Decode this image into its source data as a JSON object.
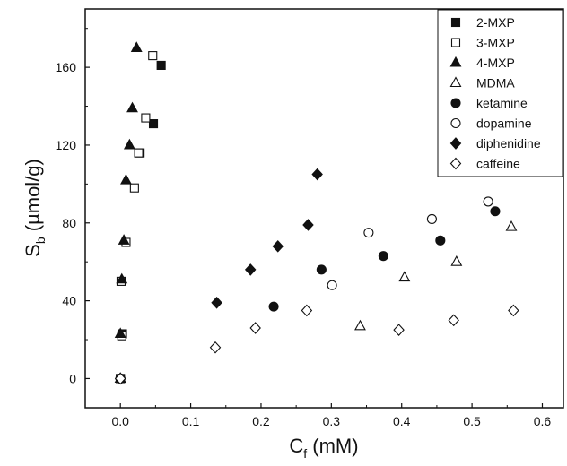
{
  "chart_data": {
    "type": "scatter",
    "title": "",
    "xlabel": {
      "main": "C",
      "sub": "f",
      "rest": " (mM)"
    },
    "ylabel": {
      "main": "S",
      "sub": "b",
      "rest": " (µmol/g)"
    },
    "xlim": [
      -0.05,
      0.63
    ],
    "ylim": [
      -15,
      190
    ],
    "xticks": [
      0.0,
      0.1,
      0.2,
      0.3,
      0.4,
      0.5,
      0.6
    ],
    "xtick_labels": [
      "0.0",
      "0.1",
      "0.2",
      "0.3",
      "0.4",
      "0.5",
      "0.6"
    ],
    "yticks": [
      0,
      40,
      80,
      120,
      160
    ],
    "ytick_labels": [
      "0",
      "40",
      "80",
      "120",
      "160"
    ],
    "grid": false,
    "legend_position": "top-right",
    "series": [
      {
        "name": "2-MXP",
        "marker": "square-filled",
        "points": [
          [
            0.0,
            0
          ],
          [
            0.003,
            23
          ],
          [
            0.028,
            116
          ],
          [
            0.047,
            131
          ],
          [
            0.058,
            161
          ]
        ]
      },
      {
        "name": "3-MXP",
        "marker": "square-open",
        "points": [
          [
            0.0,
            0
          ],
          [
            0.002,
            22
          ],
          [
            0.001,
            50
          ],
          [
            0.008,
            70
          ],
          [
            0.02,
            98
          ],
          [
            0.026,
            116
          ],
          [
            0.036,
            134
          ],
          [
            0.046,
            166
          ]
        ]
      },
      {
        "name": "4-MXP",
        "marker": "triangle-filled",
        "points": [
          [
            0.0,
            0
          ],
          [
            0.0,
            23
          ],
          [
            0.002,
            51
          ],
          [
            0.005,
            71
          ],
          [
            0.008,
            102
          ],
          [
            0.013,
            120
          ],
          [
            0.017,
            139
          ],
          [
            0.023,
            170
          ]
        ]
      },
      {
        "name": "MDMA",
        "marker": "triangle-open",
        "points": [
          [
            0.0,
            0
          ],
          [
            0.341,
            27
          ],
          [
            0.404,
            52
          ],
          [
            0.478,
            60
          ],
          [
            0.556,
            78
          ]
        ]
      },
      {
        "name": "ketamine",
        "marker": "circle-filled",
        "points": [
          [
            0.0,
            0
          ],
          [
            0.218,
            37
          ],
          [
            0.286,
            56
          ],
          [
            0.374,
            63
          ],
          [
            0.455,
            71
          ],
          [
            0.533,
            86
          ]
        ]
      },
      {
        "name": "dopamine",
        "marker": "circle-open",
        "points": [
          [
            0.0,
            0
          ],
          [
            0.301,
            48
          ],
          [
            0.353,
            75
          ],
          [
            0.443,
            82
          ],
          [
            0.523,
            91
          ]
        ]
      },
      {
        "name": "diphenidine",
        "marker": "diamond-filled",
        "points": [
          [
            0.0,
            0
          ],
          [
            0.137,
            39
          ],
          [
            0.185,
            56
          ],
          [
            0.224,
            68
          ],
          [
            0.267,
            79
          ],
          [
            0.28,
            105
          ]
        ]
      },
      {
        "name": "caffeine",
        "marker": "diamond-open",
        "points": [
          [
            0.0,
            0
          ],
          [
            0.135,
            16
          ],
          [
            0.192,
            26
          ],
          [
            0.265,
            35
          ],
          [
            0.396,
            25
          ],
          [
            0.474,
            30
          ],
          [
            0.559,
            35
          ]
        ]
      }
    ]
  }
}
